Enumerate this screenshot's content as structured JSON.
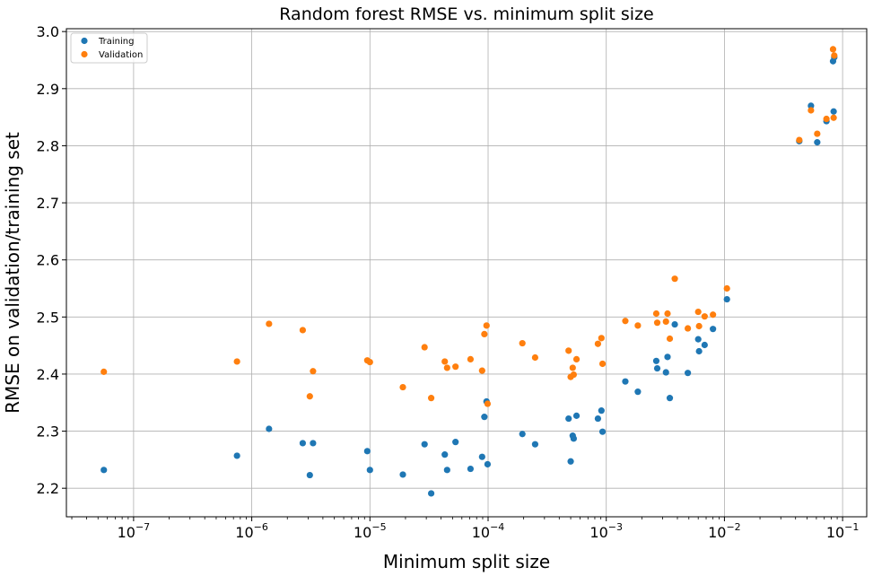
{
  "chart_data": {
    "type": "scatter",
    "title": "Random forest RMSE vs. minimum split size",
    "xlabel": "Minimum split size",
    "ylabel": "RMSE on validation/training set",
    "xscale": "log",
    "xlim": [
      2.7e-08,
      0.16
    ],
    "ylim": [
      2.15,
      3.005
    ],
    "grid": true,
    "legend_position": "top-left",
    "x_ticks": [
      {
        "value": 1e-07,
        "base": "10",
        "exp": "−7"
      },
      {
        "value": 1e-06,
        "base": "10",
        "exp": "−6"
      },
      {
        "value": 1e-05,
        "base": "10",
        "exp": "−5"
      },
      {
        "value": 0.0001,
        "base": "10",
        "exp": "−4"
      },
      {
        "value": 0.001,
        "base": "10",
        "exp": "−3"
      },
      {
        "value": 0.01,
        "base": "10",
        "exp": "−2"
      },
      {
        "value": 0.1,
        "base": "10",
        "exp": "−1"
      }
    ],
    "y_ticks": [
      {
        "value": 2.2,
        "label": "2.2"
      },
      {
        "value": 2.3,
        "label": "2.3"
      },
      {
        "value": 2.4,
        "label": "2.4"
      },
      {
        "value": 2.5,
        "label": "2.5"
      },
      {
        "value": 2.6,
        "label": "2.6"
      },
      {
        "value": 2.7,
        "label": "2.7"
      },
      {
        "value": 2.8,
        "label": "2.8"
      },
      {
        "value": 2.9,
        "label": "2.9"
      },
      {
        "value": 3.0,
        "label": "3.0"
      }
    ],
    "series": [
      {
        "name": "Training",
        "color": "#1f77b4",
        "points": [
          [
            5.6e-08,
            2.232
          ],
          [
            7.5e-07,
            2.257
          ],
          [
            1.4e-06,
            2.304
          ],
          [
            2.7e-06,
            2.279
          ],
          [
            3.1e-06,
            2.223
          ],
          [
            3.3e-06,
            2.279
          ],
          [
            9.5e-06,
            2.265
          ],
          [
            1e-05,
            2.232
          ],
          [
            1.9e-05,
            2.224
          ],
          [
            2.9e-05,
            2.277
          ],
          [
            3.3e-05,
            2.191
          ],
          [
            4.3e-05,
            2.259
          ],
          [
            4.5e-05,
            2.232
          ],
          [
            5.3e-05,
            2.281
          ],
          [
            7.1e-05,
            2.234
          ],
          [
            8.9e-05,
            2.255
          ],
          [
            9.3e-05,
            2.325
          ],
          [
            9.7e-05,
            2.352
          ],
          [
            9.9e-05,
            2.242
          ],
          [
            0.000195,
            2.295
          ],
          [
            0.00025,
            2.277
          ],
          [
            0.00048,
            2.322
          ],
          [
            0.0005,
            2.247
          ],
          [
            0.00052,
            2.292
          ],
          [
            0.00053,
            2.287
          ],
          [
            0.00056,
            2.327
          ],
          [
            0.00085,
            2.322
          ],
          [
            0.00091,
            2.336
          ],
          [
            0.00093,
            2.299
          ],
          [
            0.00145,
            2.387
          ],
          [
            0.00185,
            2.369
          ],
          [
            0.00265,
            2.423
          ],
          [
            0.0027,
            2.41
          ],
          [
            0.0032,
            2.403
          ],
          [
            0.0033,
            2.43
          ],
          [
            0.00345,
            2.358
          ],
          [
            0.0038,
            2.487
          ],
          [
            0.0049,
            2.402
          ],
          [
            0.006,
            2.461
          ],
          [
            0.0061,
            2.44
          ],
          [
            0.0068,
            2.451
          ],
          [
            0.008,
            2.479
          ],
          [
            0.0105,
            2.531
          ],
          [
            0.043,
            2.808
          ],
          [
            0.054,
            2.87
          ],
          [
            0.061,
            2.806
          ],
          [
            0.073,
            2.843
          ],
          [
            0.083,
            2.948
          ],
          [
            0.084,
            2.86
          ],
          [
            0.085,
            2.955
          ]
        ]
      },
      {
        "name": "Validation",
        "color": "#ff7f0e",
        "points": [
          [
            5.6e-08,
            2.404
          ],
          [
            7.5e-07,
            2.422
          ],
          [
            1.4e-06,
            2.488
          ],
          [
            2.7e-06,
            2.477
          ],
          [
            3.1e-06,
            2.361
          ],
          [
            3.3e-06,
            2.405
          ],
          [
            9.5e-06,
            2.424
          ],
          [
            1e-05,
            2.421
          ],
          [
            1.9e-05,
            2.377
          ],
          [
            2.9e-05,
            2.447
          ],
          [
            3.3e-05,
            2.358
          ],
          [
            4.3e-05,
            2.422
          ],
          [
            4.5e-05,
            2.411
          ],
          [
            5.3e-05,
            2.413
          ],
          [
            7.1e-05,
            2.426
          ],
          [
            8.9e-05,
            2.406
          ],
          [
            9.3e-05,
            2.47
          ],
          [
            9.7e-05,
            2.485
          ],
          [
            9.9e-05,
            2.348
          ],
          [
            0.000195,
            2.454
          ],
          [
            0.00025,
            2.429
          ],
          [
            0.00048,
            2.441
          ],
          [
            0.0005,
            2.395
          ],
          [
            0.00052,
            2.411
          ],
          [
            0.00053,
            2.399
          ],
          [
            0.00056,
            2.426
          ],
          [
            0.00085,
            2.453
          ],
          [
            0.00091,
            2.463
          ],
          [
            0.00093,
            2.418
          ],
          [
            0.00145,
            2.493
          ],
          [
            0.00185,
            2.485
          ],
          [
            0.00265,
            2.506
          ],
          [
            0.0027,
            2.49
          ],
          [
            0.0032,
            2.492
          ],
          [
            0.0033,
            2.506
          ],
          [
            0.00345,
            2.462
          ],
          [
            0.0038,
            2.567
          ],
          [
            0.0049,
            2.48
          ],
          [
            0.006,
            2.509
          ],
          [
            0.0061,
            2.484
          ],
          [
            0.0068,
            2.501
          ],
          [
            0.008,
            2.504
          ],
          [
            0.0105,
            2.55
          ],
          [
            0.043,
            2.81
          ],
          [
            0.054,
            2.862
          ],
          [
            0.061,
            2.821
          ],
          [
            0.073,
            2.847
          ],
          [
            0.083,
            2.969
          ],
          [
            0.084,
            2.849
          ],
          [
            0.085,
            2.958
          ]
        ]
      }
    ]
  }
}
